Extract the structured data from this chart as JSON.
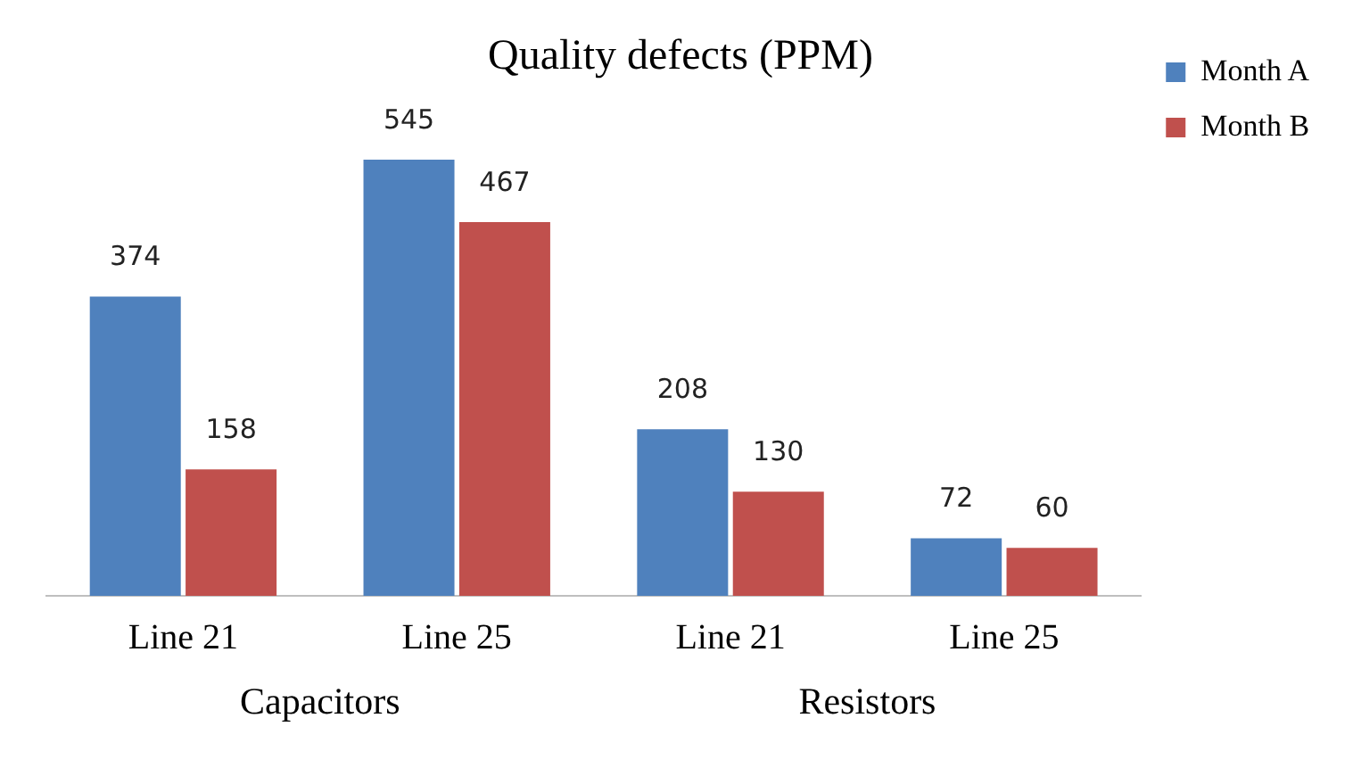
{
  "chart_data": {
    "type": "bar",
    "title": "Quality defects (PPM)",
    "categories": [
      "Line 21",
      "Line 25",
      "Line 21",
      "Line 25"
    ],
    "series": [
      {
        "name": "Month A",
        "color": "#4f81bd",
        "values": [
          374,
          545,
          208,
          72
        ]
      },
      {
        "name": "Month B",
        "color": "#c0504d",
        "values": [
          158,
          467,
          130,
          60
        ]
      }
    ],
    "annotations": [
      "Capacitors",
      "Resistors"
    ],
    "relative": false,
    "data_labels": true,
    "grid": false,
    "legend": "top right"
  }
}
